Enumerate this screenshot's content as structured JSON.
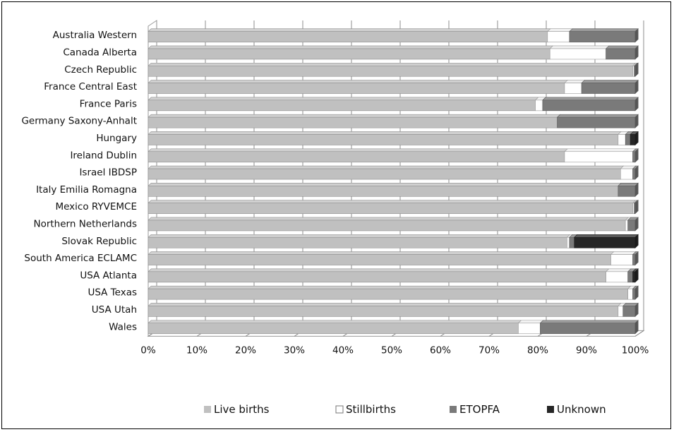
{
  "chart_data": {
    "type": "bar",
    "orientation": "horizontal",
    "stacked": "percent",
    "title": "",
    "xlabel": "",
    "ylabel": "",
    "xlim": [
      0,
      100
    ],
    "x_ticks": [
      "0%",
      "10%",
      "20%",
      "30%",
      "40%",
      "50%",
      "60%",
      "70%",
      "80%",
      "90%",
      "100%"
    ],
    "grid": "vertical",
    "legend_position": "bottom",
    "categories": [
      "Australia Western",
      "Canada Alberta",
      "Czech Republic",
      "France Central East",
      "France Paris",
      "Germany Saxony-Anhalt",
      "Hungary",
      "Ireland Dublin",
      "Israel IBDSP",
      "Italy Emilia  Romagna",
      "Mexico RYVEMCE",
      "Northern Netherlands",
      "Slovak Republic",
      "South America ECLAMC",
      "USA Atlanta",
      "USA Texas",
      "USA Utah",
      "Wales"
    ],
    "series": [
      {
        "name": "Live births",
        "color": "#c0c0c0",
        "values": [
          82.0,
          82.5,
          99.5,
          85.5,
          79.5,
          84.0,
          96.5,
          85.5,
          97.0,
          96.5,
          99.5,
          98.0,
          86.0,
          95.0,
          94.0,
          98.5,
          96.5,
          76.0
        ]
      },
      {
        "name": "Stillbirths",
        "color": "#ffffff",
        "values": [
          4.5,
          11.5,
          0.3,
          3.5,
          1.5,
          0.0,
          1.5,
          14.0,
          2.5,
          0.0,
          0.3,
          0.5,
          0.5,
          4.5,
          4.5,
          1.0,
          1.0,
          4.5
        ]
      },
      {
        "name": "ETOPFA",
        "color": "#7a7a7a",
        "values": [
          13.5,
          6.0,
          0.2,
          11.0,
          19.0,
          16.0,
          1.0,
          0.5,
          0.5,
          3.5,
          0.2,
          1.5,
          1.0,
          0.5,
          1.0,
          0.5,
          2.5,
          19.5
        ]
      },
      {
        "name": "Unknown",
        "color": "#262626",
        "values": [
          0.0,
          0.0,
          0.0,
          0.0,
          0.0,
          0.0,
          1.0,
          0.0,
          0.0,
          0.0,
          0.0,
          0.0,
          12.5,
          0.0,
          0.5,
          0.0,
          0.0,
          0.0
        ]
      }
    ]
  }
}
